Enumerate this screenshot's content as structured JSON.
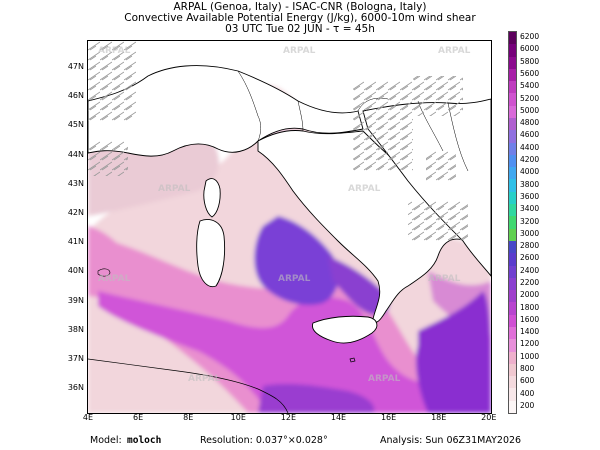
{
  "header": {
    "line1": "ARPAL (Genoa, Italy)  -  ISAC-CNR (Bologna, Italy)",
    "line2": "Convective Available Potential Energy (J/kg), 6000-10m wind shear",
    "line3": "03 UTC Tue 02 JUN  -  τ = 45h"
  },
  "map": {
    "lat_labels": [
      "47N",
      "46N",
      "45N",
      "44N",
      "43N",
      "42N",
      "41N",
      "40N",
      "39N",
      "38N",
      "37N",
      "36N"
    ],
    "lon_labels": [
      "4E",
      "6E",
      "8E",
      "10E",
      "12E",
      "14E",
      "16E",
      "18E",
      "20E"
    ],
    "watermark": "ARPAL",
    "colors": {
      "land": "#ffffff",
      "coast": "#000000",
      "wind_barb": "#9a9a9a",
      "cape_low": "#f2d6dc",
      "cape_mid": "#e98fcf",
      "cape_high": "#d054d8",
      "cape_max": "#7a3fd6"
    }
  },
  "colorbar": {
    "labels": [
      "6200",
      "6000",
      "5800",
      "5600",
      "5400",
      "5200",
      "5000",
      "4800",
      "4600",
      "4400",
      "4200",
      "4000",
      "3800",
      "3600",
      "3400",
      "3200",
      "3000",
      "2800",
      "2600",
      "2400",
      "2200",
      "2000",
      "1800",
      "1600",
      "1400",
      "1200",
      "1000",
      "800",
      "600",
      "400",
      "200"
    ],
    "colors": [
      "#5c005c",
      "#76007a",
      "#8c0a8f",
      "#a81fa8",
      "#bf3cbf",
      "#cf53cf",
      "#d96ad9",
      "#b060d0",
      "#9070e0",
      "#7080e8",
      "#5090f0",
      "#40a8f0",
      "#30c0e8",
      "#28d0c8",
      "#30d8a0",
      "#40d870",
      "#60d050",
      "#4848c8",
      "#5a3ccd",
      "#7040d0",
      "#8a40d0",
      "#a040cc",
      "#b845cf",
      "#d050d4",
      "#e070d8",
      "#e890da",
      "#eeb0cc",
      "#f0c8d0",
      "#f4dade",
      "#f8e8ea",
      "#fcf6f6"
    ]
  },
  "footer": {
    "model_label": "Model:",
    "model_value": "moloch",
    "resolution": "Resolution: 0.037°×0.028°",
    "analysis": "Analysis: Sun 06Z31MAY2026"
  }
}
